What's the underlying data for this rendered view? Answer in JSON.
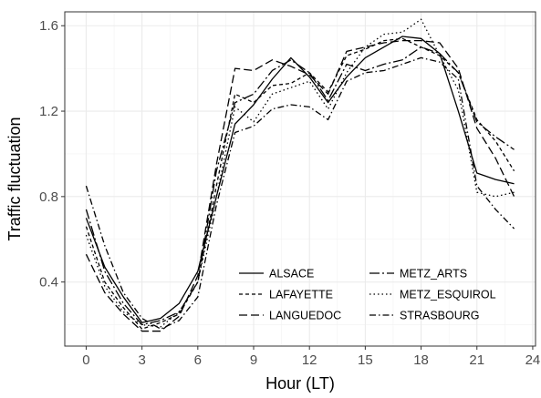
{
  "chart_data": {
    "type": "line",
    "xlabel": "Hour (LT)",
    "ylabel": "Traffic fluctuation",
    "xlim": [
      -1.15,
      24.15
    ],
    "ylim": [
      0.1,
      1.665
    ],
    "x_ticks": [
      0,
      3,
      6,
      9,
      12,
      15,
      18,
      21,
      24
    ],
    "y_ticks": [
      0.4,
      0.8,
      1.2,
      1.6
    ],
    "x_tick_labels": [
      "0",
      "3",
      "6",
      "9",
      "12",
      "15",
      "18",
      "21",
      "24"
    ],
    "y_tick_labels": [
      "0.4",
      "0.8",
      "1.2",
      "1.6"
    ],
    "grid": true,
    "legend_position": "bottom-right",
    "x": [
      0,
      1,
      2,
      3,
      4,
      5,
      6,
      7,
      8,
      9,
      10,
      11,
      12,
      13,
      14,
      15,
      16,
      17,
      18,
      19,
      20,
      21,
      22,
      23
    ],
    "series": [
      {
        "name": "ALSACE",
        "dash": "",
        "values": [
          0.7,
          0.47,
          0.33,
          0.21,
          0.23,
          0.3,
          0.45,
          0.8,
          1.14,
          1.23,
          1.35,
          1.45,
          1.36,
          1.24,
          1.36,
          1.45,
          1.5,
          1.55,
          1.54,
          1.47,
          1.2,
          0.91,
          0.88,
          0.86
        ]
      },
      {
        "name": "LAFAYETTE",
        "dash": "4 3",
        "values": [
          0.66,
          0.4,
          0.28,
          0.18,
          0.21,
          0.25,
          0.4,
          0.85,
          1.28,
          1.24,
          1.32,
          1.33,
          1.38,
          1.29,
          1.46,
          1.49,
          1.53,
          1.54,
          1.5,
          1.46,
          1.38,
          1.16,
          1.06,
          0.92
        ]
      },
      {
        "name": "LANGUEDOC",
        "dash": "9 4",
        "values": [
          0.53,
          0.35,
          0.25,
          0.17,
          0.17,
          0.24,
          0.43,
          0.95,
          1.4,
          1.39,
          1.44,
          1.41,
          1.37,
          1.28,
          1.48,
          1.5,
          1.52,
          1.53,
          1.53,
          1.52,
          1.4,
          1.12,
          0.98,
          0.8
        ]
      },
      {
        "name": "METZ_ARTS",
        "dash": "11 3 2 3",
        "values": [
          0.74,
          0.45,
          0.3,
          0.2,
          0.22,
          0.26,
          0.4,
          0.92,
          1.24,
          1.28,
          1.39,
          1.44,
          1.38,
          1.25,
          1.42,
          1.39,
          1.42,
          1.44,
          1.5,
          1.47,
          1.38,
          1.15,
          1.08,
          1.02
        ]
      },
      {
        "name": "METZ_ESQUIROL",
        "dash": "1.5 3",
        "values": [
          0.62,
          0.38,
          0.26,
          0.2,
          0.19,
          0.26,
          0.4,
          0.8,
          1.22,
          1.15,
          1.28,
          1.31,
          1.34,
          1.21,
          1.38,
          1.5,
          1.56,
          1.57,
          1.63,
          1.46,
          1.3,
          0.82,
          0.8,
          0.82
        ]
      },
      {
        "name": "STRASBOURG",
        "dash": "7 3 1.5 3",
        "values": [
          0.85,
          0.57,
          0.35,
          0.23,
          0.18,
          0.22,
          0.33,
          0.76,
          1.1,
          1.13,
          1.21,
          1.23,
          1.22,
          1.16,
          1.34,
          1.38,
          1.39,
          1.42,
          1.45,
          1.43,
          1.35,
          0.85,
          0.74,
          0.65
        ]
      }
    ]
  }
}
